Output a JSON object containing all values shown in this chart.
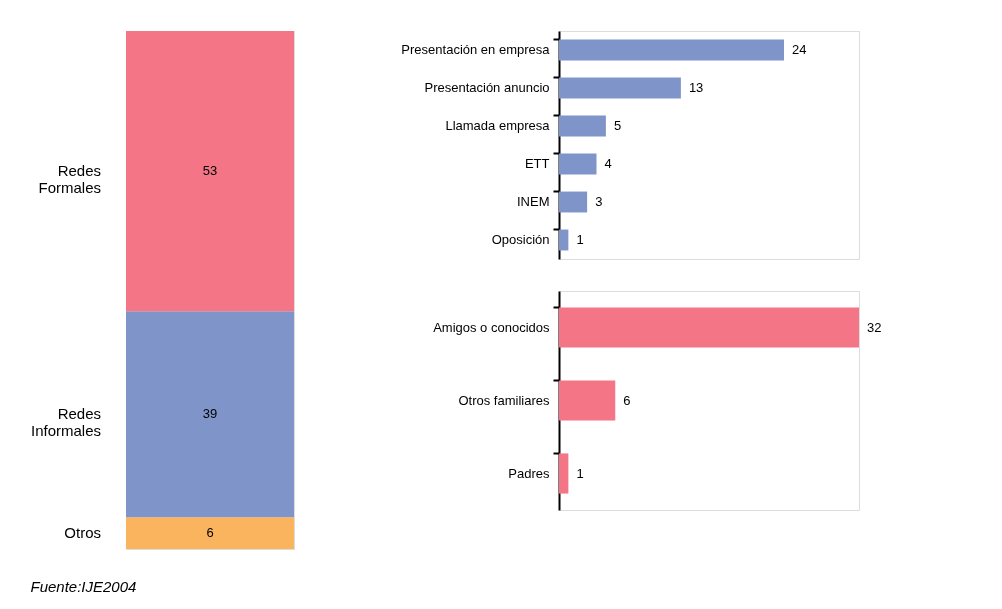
{
  "chart_data": [
    {
      "type": "bar",
      "stacked": true,
      "categories": [
        null
      ],
      "series": [
        {
          "name": "Otros",
          "color": "#fbb45e",
          "values": [
            6
          ]
        },
        {
          "name": "Redes Informales",
          "color": "#7f95c9",
          "values": [
            39
          ]
        },
        {
          "name": "Redes Formales",
          "color": "#f47585",
          "values": [
            53
          ]
        }
      ],
      "data_labels": true,
      "annotations": [
        "Fuente:IJE2004"
      ]
    },
    {
      "type": "bar",
      "orientation": "horizontal",
      "categories": [
        "Presentación en empresa",
        "Presentación anuncio",
        "Llamada empresa",
        "ETT",
        "INEM",
        "Oposición"
      ],
      "values": [
        24,
        13,
        5,
        4,
        3,
        1
      ],
      "color": "#7f95c9",
      "data_labels": true
    },
    {
      "type": "bar",
      "orientation": "horizontal",
      "categories": [
        "Amigos o conocidos",
        "Otros familiares",
        "Padres"
      ],
      "values": [
        32,
        6,
        1
      ],
      "color": "#f47585",
      "data_labels": true
    }
  ]
}
